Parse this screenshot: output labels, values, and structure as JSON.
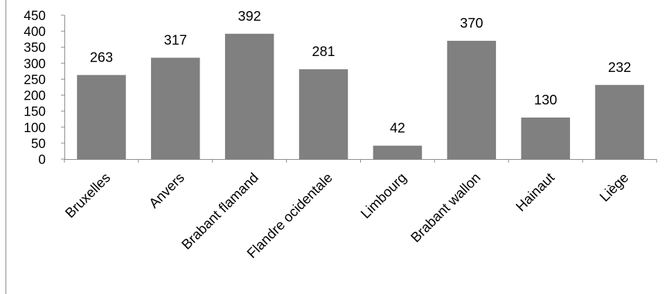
{
  "chart_data": {
    "type": "bar",
    "title": "",
    "xlabel": "",
    "ylabel": "",
    "categories": [
      "Bruxelles",
      "Anvers",
      "Brabant flamand",
      "Flandre ocidentale",
      "Limbourg",
      "Brabant wallon",
      "Hainaut",
      "Liège"
    ],
    "values": [
      263,
      317,
      392,
      281,
      42,
      370,
      130,
      232
    ],
    "data_labels": [
      "263",
      "317",
      "392",
      "281",
      "42",
      "370",
      "130",
      "232"
    ],
    "ylim": [
      0,
      450
    ],
    "yticks": [
      0,
      50,
      100,
      150,
      200,
      250,
      300,
      350,
      400,
      450
    ],
    "ytick_labels": [
      "0",
      "50",
      "100",
      "150",
      "200",
      "250",
      "300",
      "350",
      "400",
      "450"
    ],
    "grid": false,
    "legend": "none",
    "colors": {
      "bar": "#808080",
      "axis": "#868686",
      "frame": "#868686"
    }
  }
}
